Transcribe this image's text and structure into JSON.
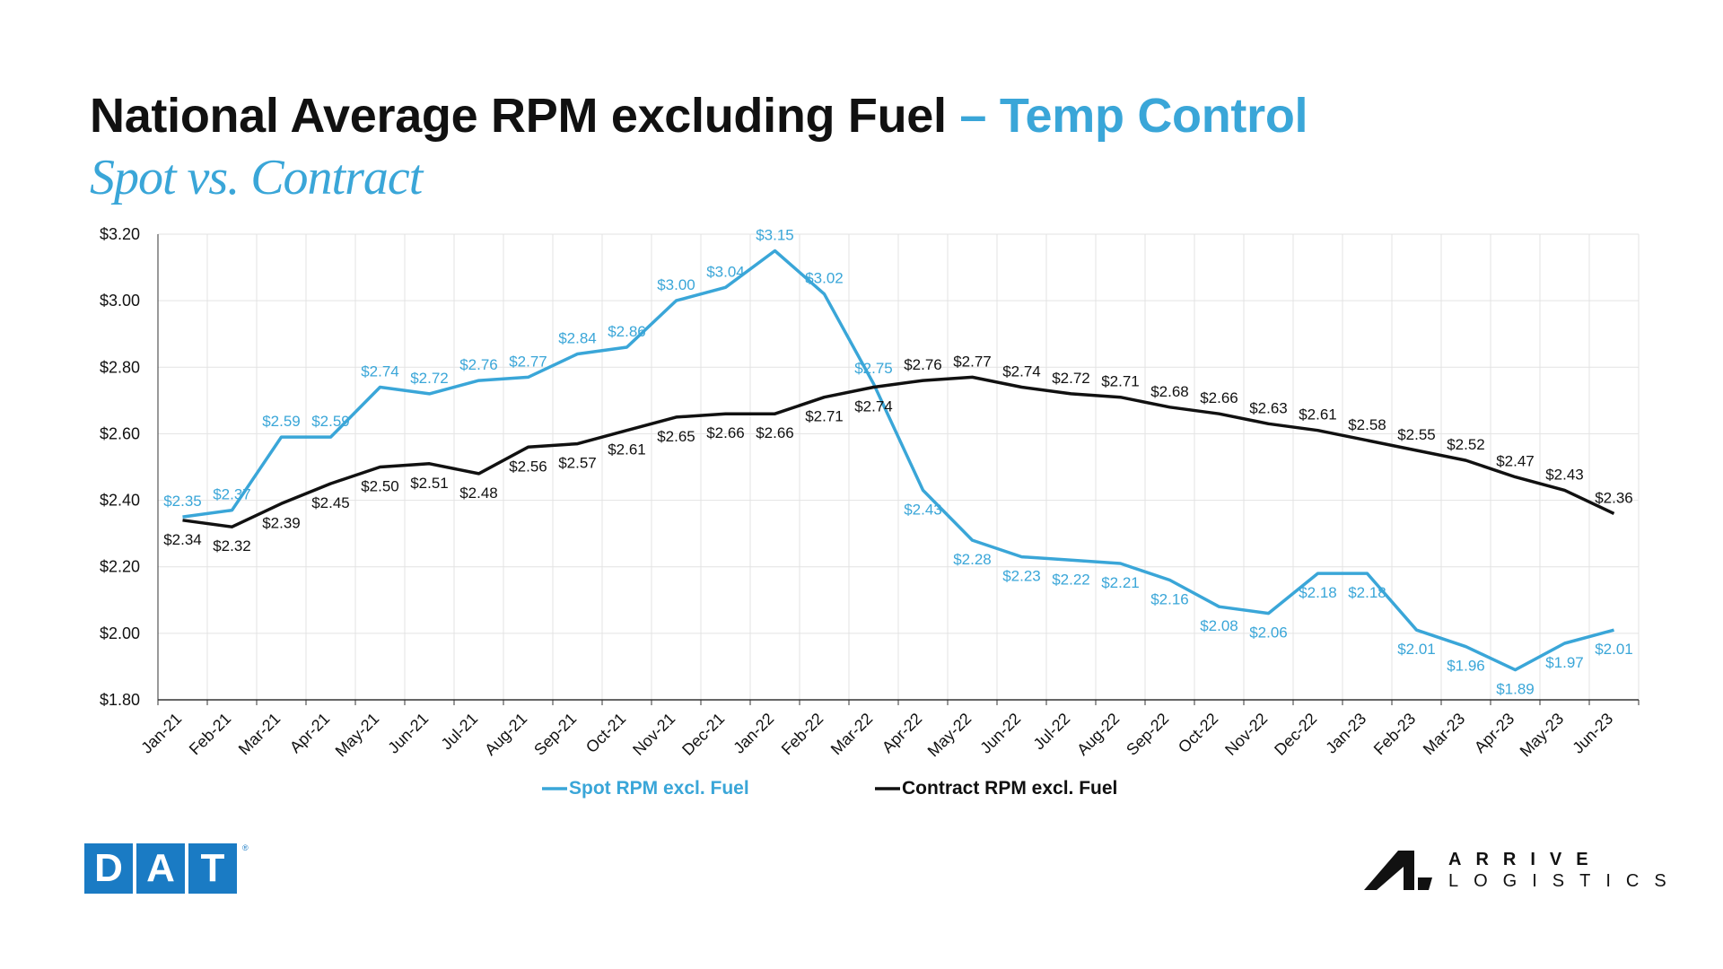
{
  "header": {
    "title_main": "National Average RPM excluding Fuel",
    "title_accent": "– Temp Control",
    "subtitle": "Spot vs. Contract"
  },
  "logos": {
    "dat_letters": [
      "D",
      "A",
      "T"
    ],
    "dat_reg": "®",
    "arrive_top": "ARRIVE",
    "arrive_bottom": "LOGISTICS"
  },
  "colors": {
    "spot": "#3aa6d8",
    "contract": "#111111",
    "grid": "#e3e3e3",
    "axis": "#333333"
  },
  "chart_data": {
    "type": "line",
    "title": "National Average RPM excluding Fuel – Temp Control",
    "subtitle": "Spot vs. Contract",
    "categories": [
      "Jan-21",
      "Feb-21",
      "Mar-21",
      "Apr-21",
      "May-21",
      "Jun-21",
      "Jul-21",
      "Aug-21",
      "Sep-21",
      "Oct-21",
      "Nov-21",
      "Dec-21",
      "Jan-22",
      "Feb-22",
      "Mar-22",
      "Apr-22",
      "May-22",
      "Jun-22",
      "Jul-22",
      "Aug-22",
      "Sep-22",
      "Oct-22",
      "Nov-22",
      "Dec-22",
      "Jan-23",
      "Feb-23",
      "Mar-23",
      "Apr-23",
      "May-23",
      "Jun-23"
    ],
    "y_ticks": [
      "$3.20",
      "$3.00",
      "$2.80",
      "$2.60",
      "$2.40",
      "$2.20",
      "$2.00",
      "$1.80"
    ],
    "ylim": [
      1.8,
      3.2
    ],
    "grid": true,
    "legend_position": "bottom",
    "series": [
      {
        "name": "Spot RPM excl. Fuel",
        "color": "#3aa6d8",
        "values": [
          2.35,
          2.37,
          2.59,
          2.59,
          2.74,
          2.72,
          2.76,
          2.77,
          2.84,
          2.86,
          3.0,
          3.04,
          3.15,
          3.02,
          2.75,
          2.43,
          2.28,
          2.23,
          2.22,
          2.21,
          2.16,
          2.08,
          2.06,
          2.18,
          2.18,
          2.01,
          1.96,
          1.89,
          1.97,
          2.01
        ],
        "labels": [
          "$2.35",
          "$2.37",
          "$2.59",
          "$2.59",
          "$2.74",
          "$2.72",
          "$2.76",
          "$2.77",
          "$2.84",
          "$2.86",
          "$3.00",
          "$3.04",
          "$3.15",
          "$3.02",
          "$2.75",
          "$2.43",
          "$2.28",
          "$2.23",
          "$2.22",
          "$2.21",
          "$2.16",
          "$2.08",
          "$2.06",
          "$2.18",
          "$2.18",
          "$2.01",
          "$1.96",
          "$1.89",
          "$1.97",
          "$2.01"
        ]
      },
      {
        "name": "Contract RPM excl. Fuel",
        "color": "#111111",
        "values": [
          2.34,
          2.32,
          2.39,
          2.45,
          2.5,
          2.51,
          2.48,
          2.56,
          2.57,
          2.61,
          2.65,
          2.66,
          2.66,
          2.71,
          2.74,
          2.76,
          2.77,
          2.74,
          2.72,
          2.71,
          2.68,
          2.66,
          2.63,
          2.61,
          2.58,
          2.55,
          2.52,
          2.47,
          2.43,
          2.36
        ],
        "labels": [
          "$2.34",
          "$2.32",
          "$2.39",
          "$2.45",
          "$2.50",
          "$2.51",
          "$2.48",
          "$2.56",
          "$2.57",
          "$2.61",
          "$2.65",
          "$2.66",
          "$2.66",
          "$2.71",
          "$2.74",
          "$2.76",
          "$2.77",
          "$2.74",
          "$2.72",
          "$2.71",
          "$2.68",
          "$2.66",
          "$2.63",
          "$2.61",
          "$2.58",
          "$2.55",
          "$2.52",
          "$2.47",
          "$2.43",
          "$2.36"
        ]
      }
    ]
  }
}
